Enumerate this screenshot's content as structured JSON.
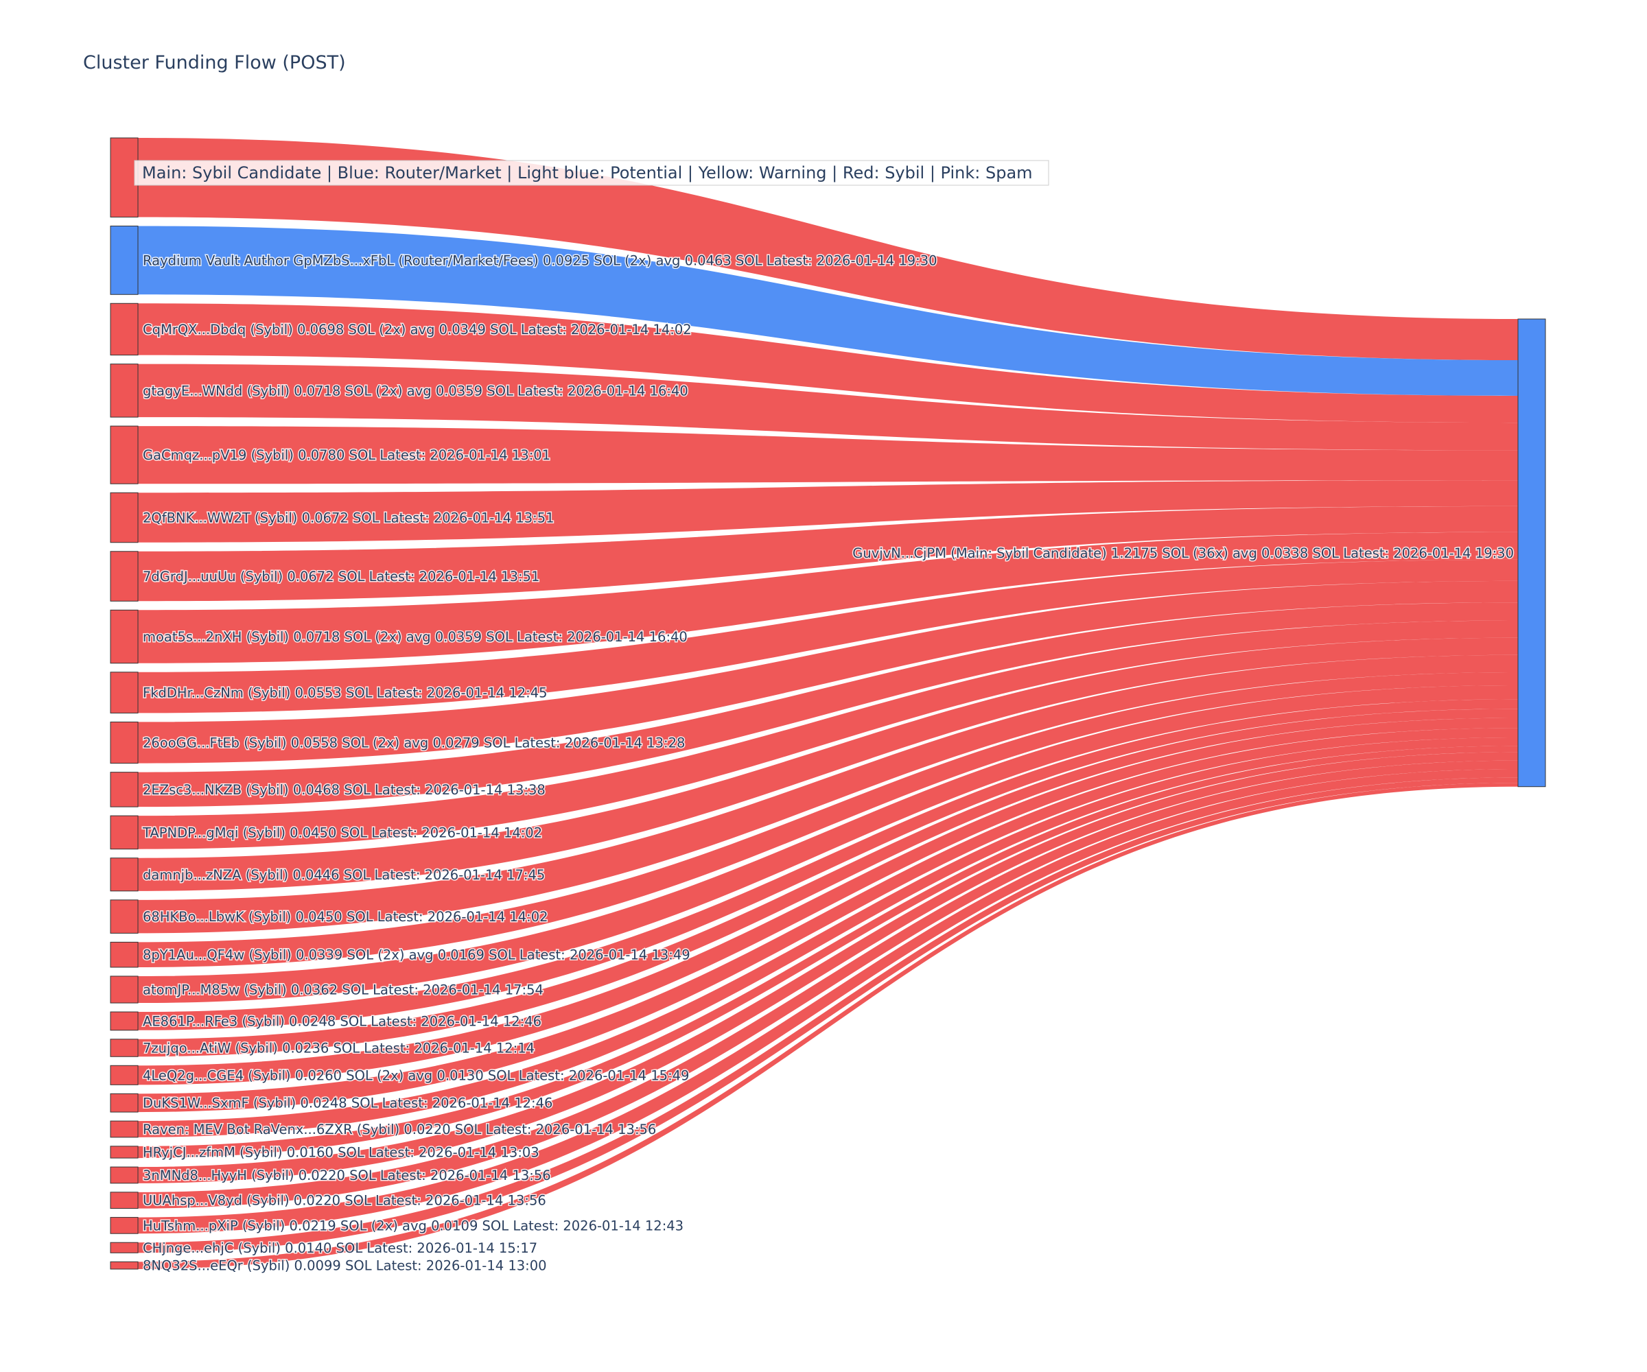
{
  "colors": {
    "sybil": "#ef5555",
    "router": "#4f8ef5",
    "main": "#4f8ef5",
    "node_stroke": "#333333",
    "text": "#2a3f5f"
  },
  "chart_data": {
    "type": "sankey",
    "title": "Cluster Funding Flow (POST)",
    "legend": "Main: Sybil Candidate  |  Blue: Router/Market | Light blue: Potential | Yellow: Warning | Red: Sybil | Pink: Spam",
    "target": {
      "label": "GuvjvN...CjPM (Main: Sybil Candidate) 1.2175 SOL (36x) avg 0.0338 SOL Latest: 2026-01-14 19:30",
      "category": "main"
    },
    "sources": [
      {
        "label": "",
        "value": 0.107,
        "category": "sybil"
      },
      {
        "label": "Raydium Vault Author GpMZbS...xFbL (Router/Market/Fees) 0.0925 SOL (2x) avg 0.0463 SOL Latest: 2026-01-14 19:30",
        "value": 0.0925,
        "category": "router"
      },
      {
        "label": "CqMrQX...Dbdq (Sybil) 0.0698 SOL (2x) avg 0.0349 SOL Latest: 2026-01-14 14:02",
        "value": 0.0698,
        "category": "sybil"
      },
      {
        "label": "gtagyE...WNdd (Sybil) 0.0718 SOL (2x) avg 0.0359 SOL Latest: 2026-01-14 16:40",
        "value": 0.0718,
        "category": "sybil"
      },
      {
        "label": "GaCmqz...pV19 (Sybil) 0.0780 SOL Latest: 2026-01-14 13:01",
        "value": 0.078,
        "category": "sybil"
      },
      {
        "label": "2QfBNK...WW2T (Sybil) 0.0672 SOL Latest: 2026-01-14 13:51",
        "value": 0.0672,
        "category": "sybil"
      },
      {
        "label": "7dGrdJ...uuUu (Sybil) 0.0672 SOL Latest: 2026-01-14 13:51",
        "value": 0.0672,
        "category": "sybil"
      },
      {
        "label": "moat5s...2nXH (Sybil) 0.0718 SOL (2x) avg 0.0359 SOL Latest: 2026-01-14 16:40",
        "value": 0.0718,
        "category": "sybil"
      },
      {
        "label": "FkdDHr...CzNm (Sybil) 0.0553 SOL Latest: 2026-01-14 12:45",
        "value": 0.0553,
        "category": "sybil"
      },
      {
        "label": "26ooGG...FtEb (Sybil) 0.0558 SOL (2x) avg 0.0279 SOL Latest: 2026-01-14 13:28",
        "value": 0.0558,
        "category": "sybil"
      },
      {
        "label": "2EZsc3...NKZB (Sybil) 0.0468 SOL Latest: 2026-01-14 13:38",
        "value": 0.0468,
        "category": "sybil"
      },
      {
        "label": "TAPNDP...gMqi (Sybil) 0.0450 SOL Latest: 2026-01-14 14:02",
        "value": 0.045,
        "category": "sybil"
      },
      {
        "label": "damnjb...zNZA (Sybil) 0.0446 SOL Latest: 2026-01-14 17:45",
        "value": 0.0446,
        "category": "sybil"
      },
      {
        "label": "68HKBo...LbwK (Sybil) 0.0450 SOL Latest: 2026-01-14 14:02",
        "value": 0.045,
        "category": "sybil"
      },
      {
        "label": "8pY1Au...QF4w (Sybil) 0.0339 SOL (2x) avg 0.0169 SOL Latest: 2026-01-14 13:49",
        "value": 0.0339,
        "category": "sybil"
      },
      {
        "label": "atomJP...M85w (Sybil) 0.0362 SOL Latest: 2026-01-14 17:54",
        "value": 0.0362,
        "category": "sybil"
      },
      {
        "label": "AE861P...RFe3 (Sybil) 0.0248 SOL Latest: 2026-01-14 12:46",
        "value": 0.0248,
        "category": "sybil"
      },
      {
        "label": "7zujqo...AtiW (Sybil) 0.0236 SOL Latest: 2026-01-14 12:14",
        "value": 0.0236,
        "category": "sybil"
      },
      {
        "label": "4LeQ2g...CGE4 (Sybil) 0.0260 SOL (2x) avg 0.0130 SOL Latest: 2026-01-14 15:49",
        "value": 0.026,
        "category": "sybil"
      },
      {
        "label": "DuKS1W...SxmF (Sybil) 0.0248 SOL Latest: 2026-01-14 12:46",
        "value": 0.0248,
        "category": "sybil"
      },
      {
        "label": "Raven: MEV Bot RaVenx...6ZXR (Sybil) 0.0220 SOL Latest: 2026-01-14 13:56",
        "value": 0.022,
        "category": "sybil"
      },
      {
        "label": "HRyjCJ...zfmM (Sybil) 0.0160 SOL Latest: 2026-01-14 13:03",
        "value": 0.016,
        "category": "sybil"
      },
      {
        "label": "3nMNd8...HyyH (Sybil) 0.0220 SOL Latest: 2026-01-14 13:56",
        "value": 0.022,
        "category": "sybil"
      },
      {
        "label": "UUAhsp...V8yd (Sybil) 0.0220 SOL Latest: 2026-01-14 13:56",
        "value": 0.022,
        "category": "sybil"
      },
      {
        "label": "HuTshm...pXiP (Sybil) 0.0219 SOL (2x) avg 0.0109 SOL Latest: 2026-01-14 12:43",
        "value": 0.0219,
        "category": "sybil"
      },
      {
        "label": "CHjnge...ehjC (Sybil) 0.0140 SOL Latest: 2026-01-14 15:17",
        "value": 0.014,
        "category": "sybil"
      },
      {
        "label": "8NQ32S...eEQr (Sybil) 0.0099 SOL Latest: 2026-01-14 13:00",
        "value": 0.0099,
        "category": "sybil"
      }
    ]
  }
}
